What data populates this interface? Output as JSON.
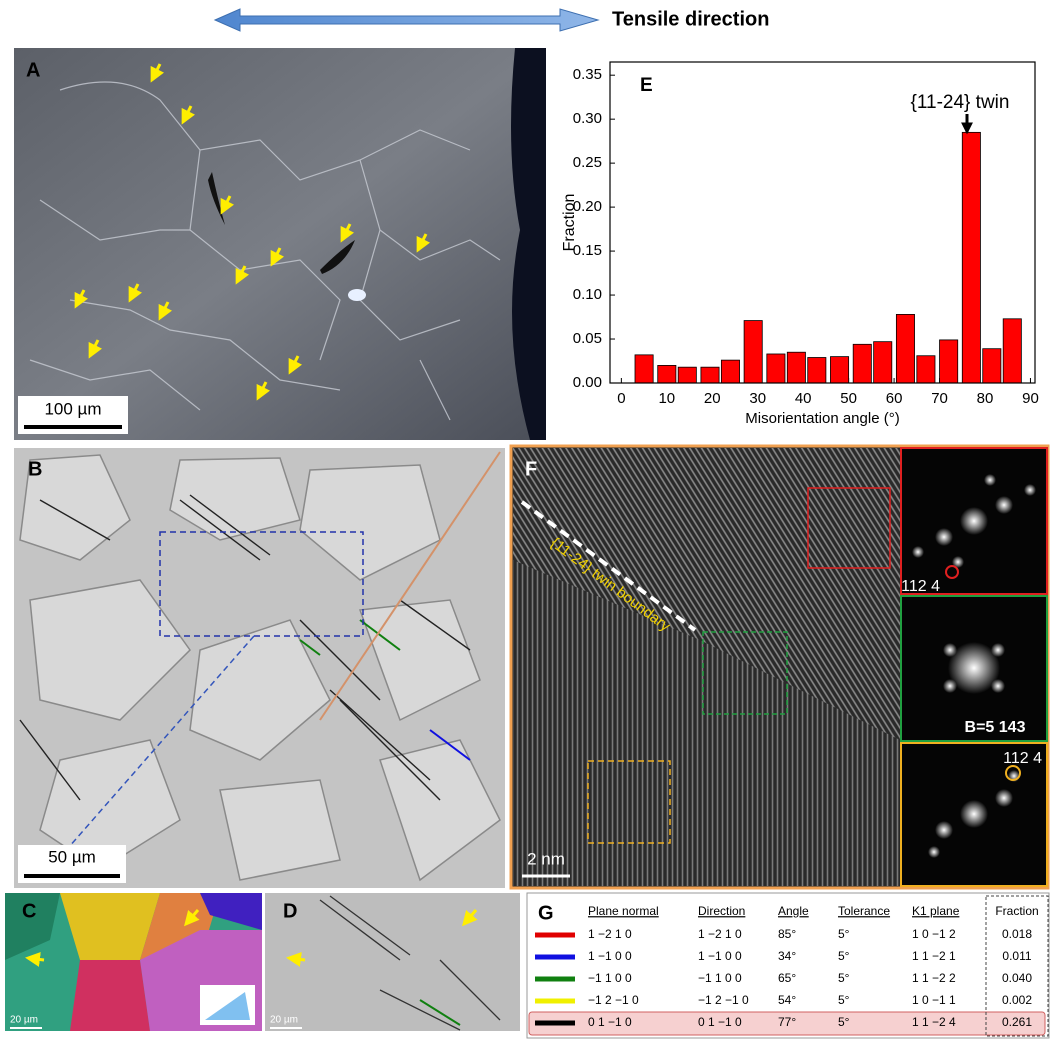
{
  "header": {
    "title": "Tensile direction"
  },
  "panels": {
    "a": {
      "label": "A",
      "scale": "100 µm"
    },
    "b": {
      "label": "B",
      "scale": "50 µm"
    },
    "c": {
      "label": "C",
      "scale": "20 µm"
    },
    "d": {
      "label": "D",
      "scale": "20 µm"
    },
    "f": {
      "label": "F",
      "boundary": "{11-24} twin boundary",
      "scale": "2 nm",
      "fft_top": "112 4",
      "fft_mid": "B=5 143",
      "fft_bottom": "112 4"
    }
  },
  "table": {
    "label": "G",
    "headers": [
      "Plane normal",
      "Direction",
      "Angle",
      "Tolerance",
      "K1 plane",
      "Fraction"
    ],
    "rows": [
      {
        "color": "#e00000",
        "cells": [
          "1 −2 1 0",
          "1 −2 1 0",
          "85°",
          "5°",
          "1 0 −1 2",
          "0.018"
        ]
      },
      {
        "color": "#1010e0",
        "cells": [
          "1 −1 0 0",
          "1 −1 0 0",
          "34°",
          "5°",
          "1 1 −2 1",
          "0.011"
        ]
      },
      {
        "color": "#108010",
        "cells": [
          "−1 1 0 0",
          "−1 1 0 0",
          "65°",
          "5°",
          "1 1 −2 2",
          "0.040"
        ]
      },
      {
        "color": "#f0f000",
        "cells": [
          "−1 2 −1 0",
          "−1 2 −1 0",
          "54°",
          "5°",
          "1 0 −1 1",
          "0.002"
        ]
      },
      {
        "color": "#000000",
        "cells": [
          "0 1 −1 0",
          "0 1 −1 0",
          "77°",
          "5°",
          "1 1 −2 4",
          "0.261"
        ]
      }
    ]
  },
  "chart_data": {
    "type": "bar",
    "label": "E",
    "annotation": "{11-24} twin",
    "xlabel": "Misorientation angle (°)",
    "ylabel": "Fraction",
    "x": [
      5,
      10,
      14.5,
      19.5,
      24,
      29,
      34,
      38.5,
      43,
      48,
      53,
      57.5,
      62.5,
      67,
      72,
      77,
      81.5,
      86
    ],
    "values": [
      0.032,
      0.02,
      0.018,
      0.018,
      0.026,
      0.071,
      0.033,
      0.035,
      0.029,
      0.03,
      0.044,
      0.047,
      0.078,
      0.031,
      0.049,
      0.285,
      0.039,
      0.073
    ],
    "color": "#ff0000",
    "xlim": [
      -2.5,
      91
    ],
    "ylim": [
      0,
      0.365
    ],
    "xticks": [
      0,
      10,
      20,
      30,
      40,
      50,
      60,
      70,
      80,
      90
    ],
    "yticks": [
      {
        "value": 0,
        "label": "0.00"
      },
      {
        "value": 0.05,
        "label": "0.05"
      },
      {
        "value": 0.1,
        "label": "0.10"
      },
      {
        "value": 0.15,
        "label": "0.15"
      },
      {
        "value": 0.2,
        "label": "0.20"
      },
      {
        "value": 0.25,
        "label": "0.25"
      },
      {
        "value": 0.3,
        "label": "0.30"
      },
      {
        "value": 0.35,
        "label": "0.35"
      }
    ],
    "grid": false
  }
}
